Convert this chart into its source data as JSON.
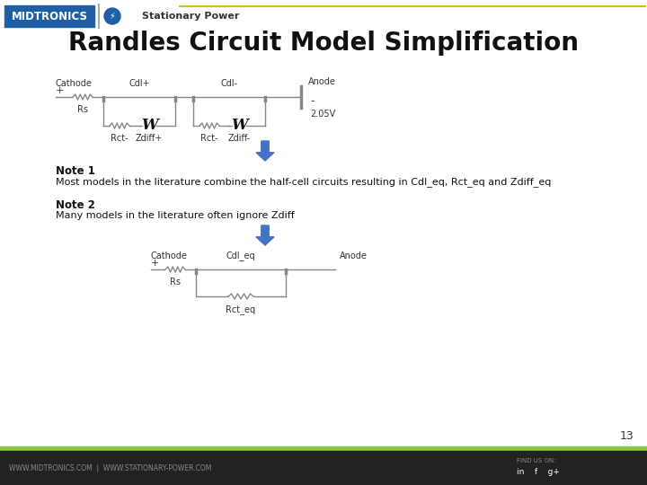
{
  "title": "Randles Circuit Model Simplification",
  "title_fontsize": 20,
  "title_fontweight": "bold",
  "bg_color": "#ffffff",
  "footer_bg": "#222222",
  "footer_green": "#8dc63f",
  "footer_text_left": "WWW.MIDTRONICS.COM  |  WWW.STATIONARY-POWER.COM",
  "footer_text_right": "FIND US ON:",
  "page_number": "13",
  "note1_title": "Note 1",
  "note1_text": "Most models in the literature combine the half-cell circuits resulting in Cdl_eq, Rct_eq and Zdiff_eq",
  "note2_title": "Note 2",
  "note2_text": "Many models in the literature often ignore Zdiff",
  "arrow_color": "#4472c4",
  "circuit_line_color": "#888888",
  "label_fontsize": 7,
  "logo_blue": "#1f5fa6",
  "logo_text": "MIDTRONICS",
  "stationary_text": "Stationary Power",
  "header_line_color": "#c8c800",
  "circuit1": {
    "cathode_label": "Cathode",
    "plus_label": "+",
    "anode_label": "Anode",
    "minus_label": "-",
    "rs_label": "Rs",
    "cdlp_label": "Cdl+",
    "cdln_label": "Cdl-",
    "rctm_label": "Rct-",
    "zdiffp_label": "Zdiff+",
    "zdiffn_label": "Zdiff-",
    "voltage_label": "2.05V"
  },
  "circuit2": {
    "cathode_label": "Cathode",
    "plus_label": "+",
    "anode_label": "Anode",
    "rs_label": "Rs",
    "cdleq_label": "Cdl_eq",
    "rcteq_label": "Rct_eq"
  }
}
